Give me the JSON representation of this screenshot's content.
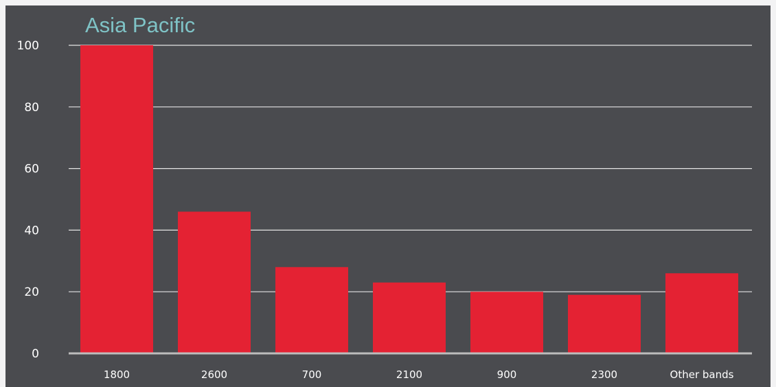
{
  "chart_data": {
    "type": "bar",
    "title": "Asia Pacific",
    "xlabel": "",
    "ylabel": "",
    "categories": [
      "1800",
      "2600",
      "700",
      "2100",
      "900",
      "2300",
      "Other bands"
    ],
    "values": [
      100,
      46,
      28,
      23,
      20,
      19,
      26
    ],
    "ylim": [
      0,
      100
    ],
    "yticks": [
      "0",
      "20",
      "40",
      "60",
      "80",
      "100"
    ],
    "grid": true,
    "legend": "none",
    "colors": {
      "bar": "#e42233",
      "background": "#4a4b4f",
      "title": "#7fc3c6",
      "grid": "#e5e5e5",
      "text": "#ffffff"
    }
  }
}
